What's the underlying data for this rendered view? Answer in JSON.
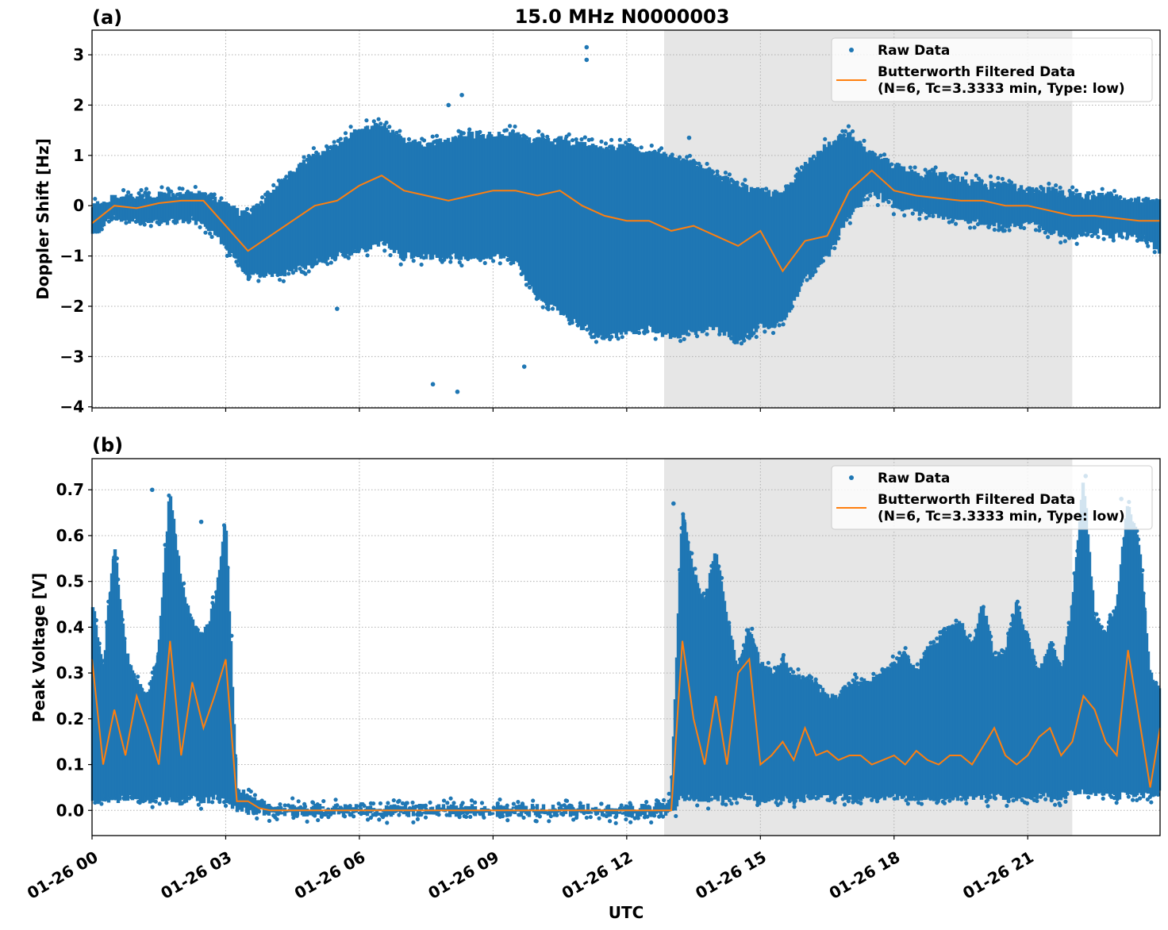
{
  "title": "15.0 MHz N0000003",
  "colors": {
    "raw": "#1f77b4",
    "filtered": "#ff7f0e",
    "shade": "#e6e6e6",
    "grid": "#b0b0b0"
  },
  "chart_data": [
    {
      "type": "scatter",
      "panel_label": "(a)",
      "title": "15.0 MHz N0000003",
      "xlabel": "UTC",
      "ylabel": "Doppler Shift [Hz]",
      "xlim_hours": [
        0,
        23.97
      ],
      "ylim": [
        -4.02,
        3.49
      ],
      "yticks": [
        -4,
        -3,
        -2,
        -1,
        0,
        1,
        2,
        3
      ],
      "ytick_labels": [
        "−4",
        "−3",
        "−2",
        "−1",
        "0",
        "1",
        "2",
        "3"
      ],
      "grid": true,
      "shaded_interval_hours": [
        12.84,
        22.0
      ],
      "legend": {
        "placement": "top-right",
        "entries": [
          "Raw Data",
          "Butterworth Filtered Data",
          "(N=6, Tc=3.3333 min, Type: low)"
        ]
      },
      "series": [
        {
          "name": "Butterworth Filtered Data (N=6, Tc=3.3333 min, Type: low)",
          "kind": "line",
          "x_hours_step": 0.5,
          "values": [
            -0.35,
            0.0,
            -0.05,
            0.05,
            0.1,
            0.1,
            -0.4,
            -0.9,
            -0.6,
            -0.3,
            0.0,
            0.1,
            0.4,
            0.6,
            0.3,
            0.2,
            0.1,
            0.2,
            0.3,
            0.3,
            0.2,
            0.3,
            0.0,
            -0.2,
            -0.3,
            -0.3,
            -0.5,
            -0.4,
            -0.6,
            -0.8,
            -0.5,
            -1.3,
            -0.7,
            -0.6,
            0.3,
            0.7,
            0.3,
            0.2,
            0.15,
            0.1,
            0.1,
            0.0,
            0.0,
            -0.1,
            -0.2,
            -0.2,
            -0.25,
            -0.3,
            -0.3
          ]
        },
        {
          "name": "Raw Data",
          "kind": "scatter-envelope",
          "x_hours_step": 0.5,
          "lo": [
            -0.6,
            -0.2,
            -0.3,
            -0.3,
            -0.3,
            -0.3,
            -0.8,
            -1.4,
            -1.4,
            -1.3,
            -1.1,
            -1.0,
            -0.9,
            -0.7,
            -1.0,
            -1.0,
            -1.0,
            -1.0,
            -1.0,
            -1.1,
            -1.8,
            -2.1,
            -2.4,
            -2.6,
            -2.5,
            -2.4,
            -2.6,
            -2.5,
            -2.4,
            -2.7,
            -2.4,
            -2.3,
            -1.5,
            -1.0,
            -0.2,
            0.3,
            0.0,
            -0.1,
            -0.2,
            -0.3,
            -0.3,
            -0.4,
            -0.3,
            -0.5,
            -0.6,
            -0.5,
            -0.6,
            -0.6,
            -0.9
          ],
          "hi": [
            0.0,
            0.15,
            0.15,
            0.2,
            0.25,
            0.2,
            0.0,
            -0.2,
            0.2,
            0.7,
            1.0,
            1.2,
            1.5,
            1.6,
            1.3,
            1.2,
            1.3,
            1.4,
            1.4,
            1.4,
            1.3,
            1.3,
            1.2,
            1.1,
            1.2,
            1.0,
            1.0,
            0.8,
            0.6,
            0.4,
            0.3,
            0.2,
            0.8,
            1.2,
            1.4,
            1.0,
            0.8,
            0.6,
            0.6,
            0.5,
            0.4,
            0.4,
            0.3,
            0.3,
            0.2,
            0.2,
            0.2,
            0.1,
            0.1
          ]
        }
      ],
      "outliers_raw": [
        [
          8.2,
          -3.7
        ],
        [
          7.65,
          -3.55
        ],
        [
          11.1,
          3.15
        ],
        [
          8.3,
          2.2
        ],
        [
          8.0,
          2.0
        ],
        [
          5.5,
          -2.05
        ],
        [
          9.7,
          -3.2
        ],
        [
          11.1,
          2.9
        ],
        [
          13.4,
          1.35
        ]
      ]
    },
    {
      "type": "scatter",
      "panel_label": "(b)",
      "xlabel": "UTC",
      "ylabel": "Peak Voltage [V]",
      "xlim_hours": [
        0,
        23.97
      ],
      "ylim": [
        -0.055,
        0.768
      ],
      "yticks": [
        0.0,
        0.1,
        0.2,
        0.3,
        0.4,
        0.5,
        0.6,
        0.7
      ],
      "ytick_labels": [
        "0.0",
        "0.1",
        "0.2",
        "0.3",
        "0.4",
        "0.5",
        "0.6",
        "0.7"
      ],
      "grid": true,
      "shaded_interval_hours": [
        12.84,
        22.0
      ],
      "legend": {
        "placement": "top-right",
        "entries": [
          "Raw Data",
          "Butterworth Filtered Data",
          "(N=6, Tc=3.3333 min, Type: low)"
        ]
      },
      "series": [
        {
          "name": "Butterworth Filtered Data (N=6, Tc=3.3333 min, Type: low)",
          "kind": "line",
          "x_hours_step": 0.25,
          "values": [
            0.33,
            0.1,
            0.22,
            0.12,
            0.25,
            0.18,
            0.1,
            0.37,
            0.12,
            0.28,
            0.18,
            0.25,
            0.33,
            0.02,
            0.02,
            0.005,
            0.0,
            0.0,
            0.0,
            0.0,
            0.0,
            0.0,
            0.0,
            0.0,
            0.0,
            0.0,
            0.0,
            0.0,
            0.0,
            0.0,
            0.0,
            0.0,
            0.0,
            0.0,
            0.0,
            0.0,
            0.0,
            0.0,
            0.0,
            0.0,
            0.0,
            0.0,
            0.0,
            0.0,
            0.0,
            0.0,
            0.0,
            0.0,
            0.0,
            0.0,
            0.0,
            0.0,
            0.0,
            0.37,
            0.2,
            0.1,
            0.25,
            0.1,
            0.3,
            0.33,
            0.1,
            0.12,
            0.15,
            0.11,
            0.18,
            0.12,
            0.13,
            0.11,
            0.12,
            0.12,
            0.1,
            0.11,
            0.12,
            0.1,
            0.13,
            0.11,
            0.1,
            0.12,
            0.12,
            0.1,
            0.14,
            0.18,
            0.12,
            0.1,
            0.12,
            0.16,
            0.18,
            0.12,
            0.15,
            0.25,
            0.22,
            0.15,
            0.12,
            0.35,
            0.2,
            0.05,
            0.18
          ]
        },
        {
          "name": "Raw Data",
          "kind": "scatter-envelope",
          "x_hours_step": 0.25,
          "lo": [
            0.02,
            0.03,
            0.02,
            0.03,
            0.03,
            0.02,
            0.03,
            0.02,
            0.02,
            0.03,
            0.02,
            0.03,
            0.02,
            0.005,
            0.0,
            0.0,
            -0.005,
            -0.005,
            -0.005,
            -0.005,
            -0.005,
            -0.005,
            -0.005,
            -0.005,
            -0.005,
            -0.005,
            -0.005,
            -0.005,
            -0.005,
            -0.005,
            -0.005,
            -0.005,
            -0.005,
            -0.005,
            -0.005,
            -0.005,
            -0.005,
            -0.005,
            -0.005,
            -0.005,
            -0.005,
            -0.005,
            -0.005,
            -0.005,
            -0.005,
            -0.005,
            -0.005,
            -0.005,
            -0.005,
            -0.005,
            -0.005,
            -0.005,
            -0.005,
            0.03,
            0.03,
            0.02,
            0.03,
            0.02,
            0.03,
            0.03,
            0.02,
            0.03,
            0.03,
            0.02,
            0.03,
            0.03,
            0.03,
            0.03,
            0.03,
            0.03,
            0.03,
            0.03,
            0.03,
            0.03,
            0.03,
            0.03,
            0.03,
            0.03,
            0.03,
            0.03,
            0.03,
            0.03,
            0.03,
            0.03,
            0.03,
            0.03,
            0.03,
            0.03,
            0.04,
            0.04,
            0.04,
            0.04,
            0.03,
            0.04,
            0.03,
            0.03,
            0.04
          ],
          "hi": [
            0.46,
            0.3,
            0.58,
            0.35,
            0.28,
            0.25,
            0.35,
            0.7,
            0.5,
            0.41,
            0.38,
            0.45,
            0.63,
            0.05,
            0.03,
            0.02,
            0.005,
            0.005,
            0.005,
            0.005,
            0.005,
            0.005,
            0.005,
            0.005,
            0.005,
            0.005,
            0.005,
            0.005,
            0.005,
            0.005,
            0.005,
            0.005,
            0.005,
            0.005,
            0.005,
            0.005,
            0.005,
            0.005,
            0.005,
            0.005,
            0.005,
            0.005,
            0.005,
            0.005,
            0.005,
            0.005,
            0.005,
            0.005,
            0.005,
            0.005,
            0.005,
            0.01,
            0.02,
            0.66,
            0.52,
            0.45,
            0.57,
            0.42,
            0.31,
            0.4,
            0.32,
            0.3,
            0.33,
            0.29,
            0.29,
            0.27,
            0.25,
            0.24,
            0.28,
            0.28,
            0.28,
            0.3,
            0.32,
            0.34,
            0.3,
            0.35,
            0.37,
            0.4,
            0.41,
            0.36,
            0.45,
            0.33,
            0.35,
            0.45,
            0.38,
            0.3,
            0.37,
            0.3,
            0.44,
            0.73,
            0.42,
            0.39,
            0.45,
            0.67,
            0.58,
            0.3,
            0.25
          ]
        }
      ],
      "outliers_raw": [
        [
          22.3,
          0.73
        ],
        [
          23.1,
          0.68
        ],
        [
          13.05,
          0.67
        ],
        [
          1.35,
          0.7
        ],
        [
          2.45,
          0.63
        ]
      ]
    }
  ],
  "x_axis": {
    "label": "UTC",
    "tick_hours": [
      0,
      3,
      6,
      9,
      12,
      15,
      18,
      21
    ],
    "tick_labels": [
      "01-26 00",
      "01-26 03",
      "01-26 06",
      "01-26 09",
      "01-26 12",
      "01-26 15",
      "01-26 18",
      "01-26 21"
    ]
  }
}
